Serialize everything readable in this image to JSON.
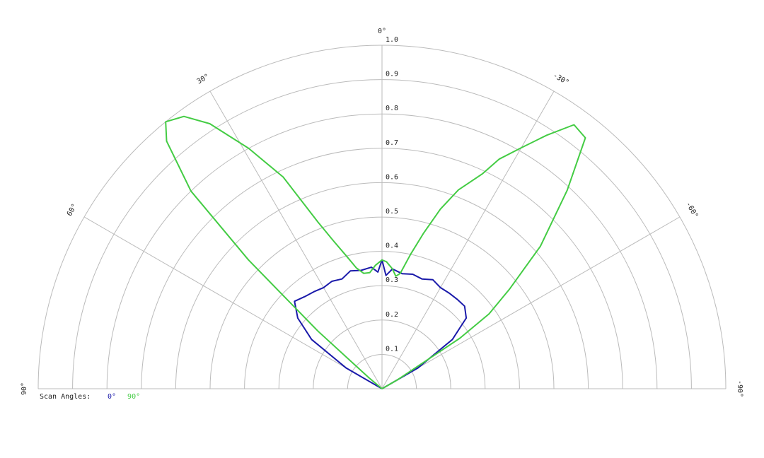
{
  "chart_data": {
    "type": "polar",
    "legend_title": "Scan Angles:",
    "xlim": [
      -90,
      90
    ],
    "xticks": [
      {
        "value": 90,
        "label": "90°"
      },
      {
        "value": 60,
        "label": "60°"
      },
      {
        "value": 30,
        "label": "30°"
      },
      {
        "value": 0,
        "label": "0°"
      },
      {
        "value": -30,
        "label": "-30°"
      },
      {
        "value": -60,
        "label": "-60°"
      },
      {
        "value": -90,
        "label": "-90°"
      }
    ],
    "ylim": [
      0,
      1
    ],
    "yticks": [
      0.1,
      0.2,
      0.3,
      0.4,
      0.5,
      0.6,
      0.7,
      0.8,
      0.9,
      {
        "value": 1,
        "label": "1.0"
      }
    ],
    "grid": true,
    "series": [
      {
        "name": "0°",
        "color": "#1a1aaa",
        "x": [
          -90,
          -65,
          -60,
          -55,
          -50,
          -45,
          -40,
          -35,
          -30,
          -25,
          -20,
          -15,
          -10,
          -5,
          -2,
          0,
          2,
          5,
          10,
          15,
          20,
          25,
          30,
          35,
          40,
          45,
          50,
          55,
          60,
          65,
          90
        ],
        "values": [
          0,
          0,
          0.12,
          0.25,
          0.32,
          0.34,
          0.34,
          0.34,
          0.34,
          0.35,
          0.34,
          0.345,
          0.34,
          0.35,
          0.33,
          0.375,
          0.34,
          0.355,
          0.35,
          0.355,
          0.34,
          0.345,
          0.34,
          0.345,
          0.35,
          0.36,
          0.32,
          0.25,
          0.12,
          0,
          0
        ]
      },
      {
        "name": "90°",
        "color": "#44cc44",
        "x": [
          -90,
          -65,
          -60,
          -57,
          -55,
          -52,
          -48,
          -43,
          -39,
          -36,
          -33,
          -30,
          -27,
          -25,
          -21,
          -18,
          -15,
          -12,
          -9,
          -7,
          -5,
          -2,
          0,
          3,
          6,
          9,
          12,
          15,
          18,
          21,
          25,
          29,
          33,
          36,
          39,
          41,
          44,
          46,
          48,
          50,
          55,
          90
        ],
        "values": [
          0,
          0,
          0.05,
          0.27,
          0.38,
          0.47,
          0.62,
          0.79,
          0.94,
          0.95,
          0.88,
          0.81,
          0.75,
          0.69,
          0.62,
          0.55,
          0.47,
          0.4,
          0.34,
          0.33,
          0.35,
          0.37,
          0.375,
          0.36,
          0.34,
          0.34,
          0.36,
          0.4,
          0.45,
          0.52,
          0.68,
          0.8,
          0.92,
          0.98,
          1.0,
          0.955,
          0.8,
          0.54,
          0.25,
          0.05,
          0,
          0
        ]
      }
    ]
  }
}
